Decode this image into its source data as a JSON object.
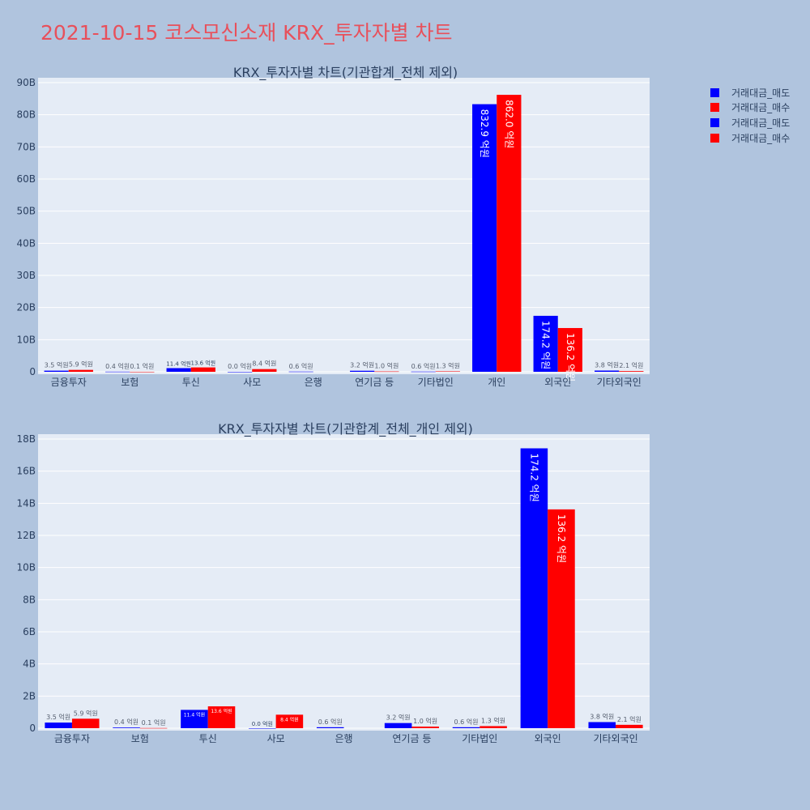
{
  "page_title": "2021-10-15 코스모신소재 KRX_투자자별 차트",
  "colors": {
    "background": "#b0c4de",
    "plot_bg": "#e5ecf6",
    "title": "#e8505b",
    "sell": "#0000ff",
    "buy": "#ff0000",
    "text": "#2a3f5f",
    "grid": "#ffffff"
  },
  "legend": {
    "items": [
      {
        "label": "거래대금_매도",
        "color": "#0000ff"
      },
      {
        "label": "거래대금_매수",
        "color": "#ff0000"
      },
      {
        "label": "거래대금_매도",
        "color": "#0000ff"
      },
      {
        "label": "거래대금_매수",
        "color": "#ff0000"
      }
    ]
  },
  "chart_data": [
    {
      "type": "bar",
      "title": "KRX_투자자별 차트(기관합계_전체 제외)",
      "categories": [
        "금융투자",
        "보험",
        "투신",
        "사모",
        "은행",
        "연기금 등",
        "기타법인",
        "개인",
        "외국인",
        "기타외국인"
      ],
      "series": [
        {
          "name": "거래대금_매도",
          "values": [
            0.35,
            0.04,
            1.14,
            0.0,
            0.06,
            0.32,
            0.06,
            83.29,
            17.42,
            0.38
          ],
          "labels": [
            "3.5 억원",
            "0.4 억원",
            "11.4 억원",
            "0.0 억원",
            "0.6 억원",
            "3.2 억원",
            "0.6 억원",
            "832.9 억원",
            "174.2 억원",
            "3.8 억원"
          ]
        },
        {
          "name": "거래대금_매수",
          "values": [
            0.59,
            0.01,
            1.36,
            0.84,
            null,
            0.1,
            0.13,
            86.2,
            13.62,
            0.21
          ],
          "labels": [
            "5.9 억원",
            "0.1 억원",
            "13.6 억원",
            "8.4 억원",
            "",
            "1.0 억원",
            "1.3 억원",
            "862.0 억원",
            "136.2 억원",
            "2.1 억원"
          ]
        }
      ],
      "ylim": [
        0,
        90
      ],
      "yticks": [
        0,
        10,
        20,
        30,
        40,
        50,
        60,
        70,
        80,
        90
      ],
      "ytick_labels": [
        "0",
        "10B",
        "20B",
        "30B",
        "40B",
        "50B",
        "60B",
        "70B",
        "80B",
        "90B"
      ],
      "grid": true
    },
    {
      "type": "bar",
      "title": "KRX_투자자별 차트(기관합계_전체_개인 제외)",
      "categories": [
        "금융투자",
        "보험",
        "투신",
        "사모",
        "은행",
        "연기금 등",
        "기타법인",
        "외국인",
        "기타외국인"
      ],
      "series": [
        {
          "name": "거래대금_매도",
          "values": [
            0.35,
            0.04,
            1.14,
            0.0,
            0.06,
            0.32,
            0.06,
            17.42,
            0.38
          ],
          "labels": [
            "3.5 억원",
            "0.4 억원",
            "11.4 억원",
            "0.0 억원",
            "0.6 억원",
            "3.2 억원",
            "0.6 억원",
            "174.2 억원",
            "3.8 억원"
          ]
        },
        {
          "name": "거래대금_매수",
          "values": [
            0.59,
            0.01,
            1.36,
            0.84,
            null,
            0.1,
            0.13,
            13.62,
            0.21
          ],
          "labels": [
            "5.9 억원",
            "0.1 억원",
            "13.6 억원",
            "8.4 억원",
            "",
            "1.0 억원",
            "1.3 억원",
            "136.2 억원",
            "2.1 억원"
          ]
        }
      ],
      "ylim": [
        0,
        18
      ],
      "yticks": [
        0,
        2,
        4,
        6,
        8,
        10,
        12,
        14,
        16,
        18
      ],
      "ytick_labels": [
        "0",
        "2B",
        "4B",
        "6B",
        "8B",
        "10B",
        "12B",
        "14B",
        "16B",
        "18B"
      ],
      "grid": true
    }
  ]
}
